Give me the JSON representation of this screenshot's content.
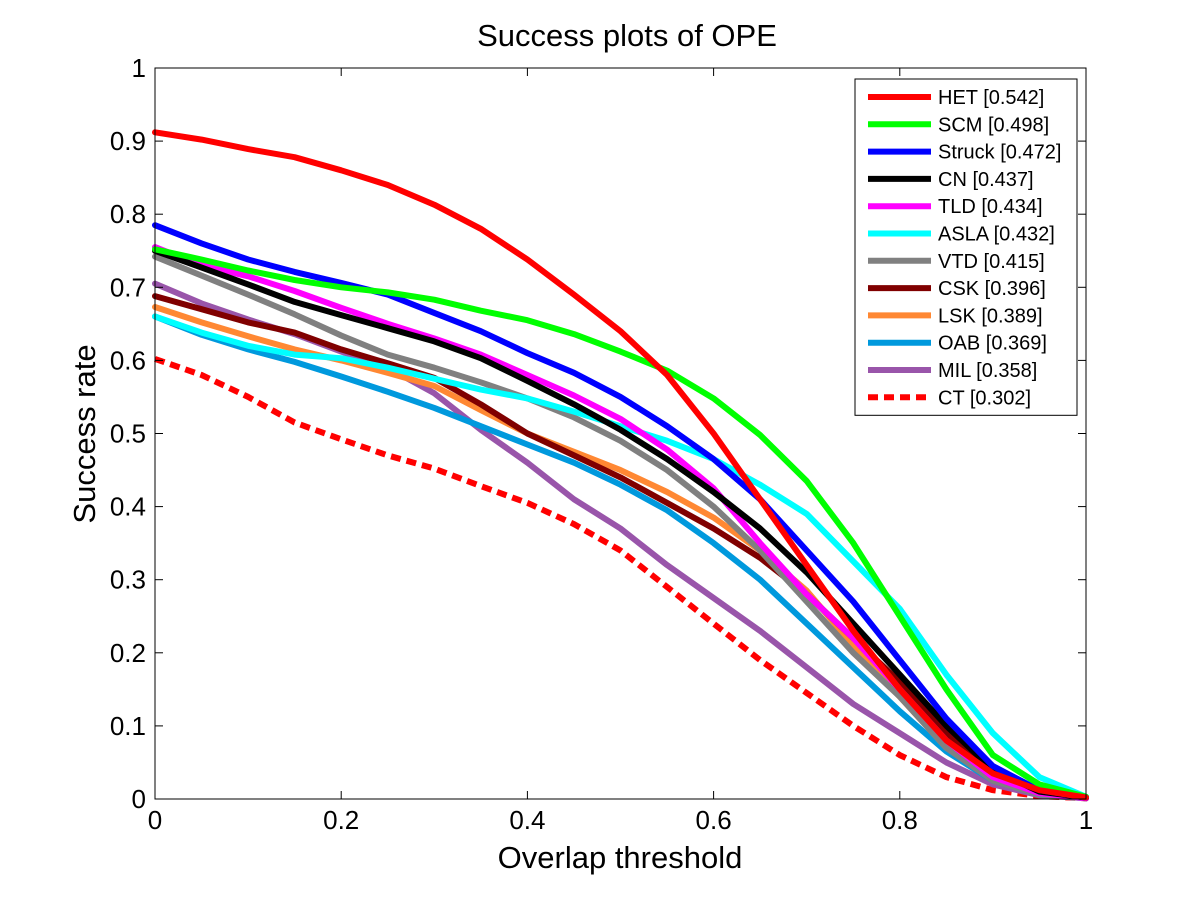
{
  "chart_data": {
    "type": "line",
    "title": "Success plots of OPE",
    "xlabel": "Overlap threshold",
    "ylabel": "Success rate",
    "xlim": [
      0,
      1
    ],
    "ylim": [
      0,
      1
    ],
    "xticks": [
      "0",
      "0.2",
      "0.4",
      "0.6",
      "0.8",
      "1"
    ],
    "yticks": [
      "0",
      "0.1",
      "0.2",
      "0.3",
      "0.4",
      "0.5",
      "0.6",
      "0.7",
      "0.8",
      "0.9",
      "1"
    ],
    "grid": false,
    "legend_position": "top-right",
    "x": [
      0,
      0.05,
      0.1,
      0.15,
      0.2,
      0.25,
      0.3,
      0.35,
      0.4,
      0.45,
      0.5,
      0.55,
      0.6,
      0.65,
      0.7,
      0.75,
      0.8,
      0.85,
      0.9,
      0.95,
      1.0
    ],
    "series": [
      {
        "name": "HET [0.542]",
        "color": "#ff0000",
        "style": "solid",
        "values": [
          0.912,
          0.902,
          0.889,
          0.878,
          0.86,
          0.84,
          0.813,
          0.78,
          0.738,
          0.69,
          0.64,
          0.58,
          0.5,
          0.41,
          0.32,
          0.23,
          0.15,
          0.08,
          0.035,
          0.012,
          0.002
        ]
      },
      {
        "name": "SCM [0.498]",
        "color": "#00ff00",
        "style": "solid",
        "values": [
          0.752,
          0.738,
          0.723,
          0.71,
          0.7,
          0.693,
          0.683,
          0.668,
          0.655,
          0.636,
          0.612,
          0.586,
          0.548,
          0.498,
          0.435,
          0.35,
          0.25,
          0.15,
          0.06,
          0.02,
          0.003
        ]
      },
      {
        "name": "Struck [0.472]",
        "color": "#0000ff",
        "style": "solid",
        "values": [
          0.785,
          0.76,
          0.738,
          0.721,
          0.706,
          0.69,
          0.665,
          0.64,
          0.61,
          0.583,
          0.55,
          0.51,
          0.465,
          0.41,
          0.34,
          0.27,
          0.19,
          0.11,
          0.045,
          0.012,
          0.002
        ]
      },
      {
        "name": "CN [0.437]",
        "color": "#000000",
        "style": "solid",
        "values": [
          0.75,
          0.727,
          0.704,
          0.68,
          0.662,
          0.644,
          0.626,
          0.603,
          0.572,
          0.54,
          0.505,
          0.465,
          0.42,
          0.37,
          0.31,
          0.24,
          0.17,
          0.1,
          0.04,
          0.01,
          0.002
        ]
      },
      {
        "name": "TLD [0.434]",
        "color": "#ff00ff",
        "style": "solid",
        "values": [
          0.755,
          0.73,
          0.715,
          0.695,
          0.672,
          0.65,
          0.63,
          0.608,
          0.58,
          0.552,
          0.52,
          0.478,
          0.425,
          0.35,
          0.28,
          0.22,
          0.15,
          0.08,
          0.03,
          0.008,
          0.001
        ]
      },
      {
        "name": "ASLA [0.432]",
        "color": "#00ffff",
        "style": "solid",
        "values": [
          0.66,
          0.638,
          0.62,
          0.608,
          0.603,
          0.59,
          0.575,
          0.56,
          0.548,
          0.53,
          0.51,
          0.49,
          0.465,
          0.43,
          0.39,
          0.325,
          0.26,
          0.17,
          0.09,
          0.03,
          0.003
        ]
      },
      {
        "name": "VTD [0.415]",
        "color": "#808080",
        "style": "solid",
        "values": [
          0.742,
          0.716,
          0.69,
          0.663,
          0.634,
          0.608,
          0.59,
          0.57,
          0.548,
          0.522,
          0.49,
          0.45,
          0.4,
          0.34,
          0.27,
          0.2,
          0.14,
          0.07,
          0.025,
          0.006,
          0.001
        ]
      },
      {
        "name": "CSK [0.396]",
        "color": "#800000",
        "style": "solid",
        "values": [
          0.688,
          0.67,
          0.652,
          0.638,
          0.615,
          0.596,
          0.576,
          0.54,
          0.5,
          0.47,
          0.44,
          0.405,
          0.37,
          0.33,
          0.28,
          0.22,
          0.16,
          0.09,
          0.04,
          0.01,
          0.001
        ]
      },
      {
        "name": "LSK [0.389]",
        "color": "#ff8833",
        "style": "solid",
        "values": [
          0.673,
          0.652,
          0.633,
          0.615,
          0.6,
          0.583,
          0.565,
          0.532,
          0.5,
          0.475,
          0.45,
          0.42,
          0.385,
          0.34,
          0.285,
          0.21,
          0.14,
          0.07,
          0.03,
          0.008,
          0.001
        ]
      },
      {
        "name": "OAB [0.369]",
        "color": "#0099dd",
        "style": "solid",
        "values": [
          0.66,
          0.635,
          0.615,
          0.598,
          0.578,
          0.557,
          0.535,
          0.51,
          0.485,
          0.46,
          0.43,
          0.395,
          0.35,
          0.3,
          0.24,
          0.18,
          0.12,
          0.065,
          0.025,
          0.006,
          0.001
        ]
      },
      {
        "name": "MIL [0.358]",
        "color": "#9955aa",
        "style": "solid",
        "values": [
          0.705,
          0.678,
          0.656,
          0.636,
          0.612,
          0.59,
          0.555,
          0.505,
          0.46,
          0.41,
          0.37,
          0.32,
          0.275,
          0.23,
          0.18,
          0.13,
          0.09,
          0.05,
          0.02,
          0.005,
          0.001
        ]
      },
      {
        "name": "CT [0.302]",
        "color": "#ff0000",
        "style": "dashed",
        "values": [
          0.602,
          0.58,
          0.55,
          0.515,
          0.492,
          0.47,
          0.452,
          0.428,
          0.405,
          0.376,
          0.34,
          0.29,
          0.24,
          0.19,
          0.145,
          0.1,
          0.06,
          0.03,
          0.012,
          0.004,
          0.001
        ]
      }
    ]
  }
}
